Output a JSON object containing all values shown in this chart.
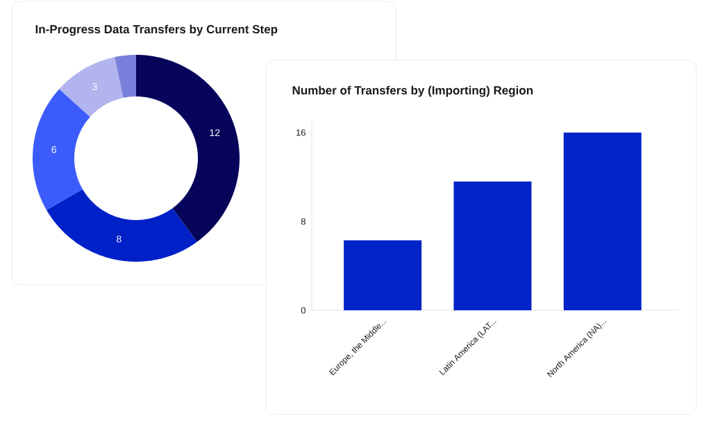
{
  "chart_data": [
    {
      "type": "donut",
      "title": "In-Progress Data Transfers by Current Step",
      "categories": [
        null,
        null,
        null,
        null,
        null
      ],
      "values": [
        12,
        8,
        6,
        3,
        1
      ],
      "value_labels": [
        "12",
        "8",
        "6",
        "3",
        null
      ],
      "colors": [
        "#07055a",
        "#0020c8",
        "#3b5cfb",
        "#b2b4ee",
        "#7b7fdc"
      ]
    },
    {
      "type": "bar",
      "title": "Number of Transfers by (Importing) Region",
      "categories": [
        "Europe, the Middle...",
        "Latin America (LAT...",
        "North America (NA)..."
      ],
      "values": [
        6.3,
        11.6,
        16
      ],
      "color": "#0024c8",
      "ylim": [
        0,
        17
      ],
      "yticks": [
        0,
        8,
        16
      ]
    }
  ]
}
